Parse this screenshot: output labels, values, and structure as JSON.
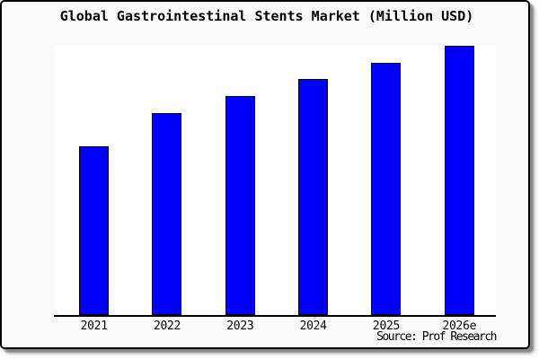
{
  "chart_data": {
    "type": "bar",
    "title": "Global Gastrointestinal Stents Market (Million USD)",
    "categories": [
      "2021",
      "2022",
      "2023",
      "2024",
      "2025",
      "2026e"
    ],
    "values": [
      62.7,
      75.0,
      81.3,
      87.7,
      93.7,
      100
    ],
    "values_note": "relative bar heights, percent of tallest (2026e) bar; no y-axis scale shown in chart",
    "xlabel": "",
    "ylabel": "",
    "ylim": [
      0,
      100
    ],
    "grid": false,
    "y_axis_labels_visible": false,
    "legend": null,
    "source": "Source: Prof Research",
    "colors": {
      "bar_fill": "#0000FF",
      "bar_border": "#000000",
      "plot_background": "#FFFFFF",
      "frame_background": "#FAFAFA",
      "axis_line": "#000000",
      "text": "#000000"
    }
  }
}
